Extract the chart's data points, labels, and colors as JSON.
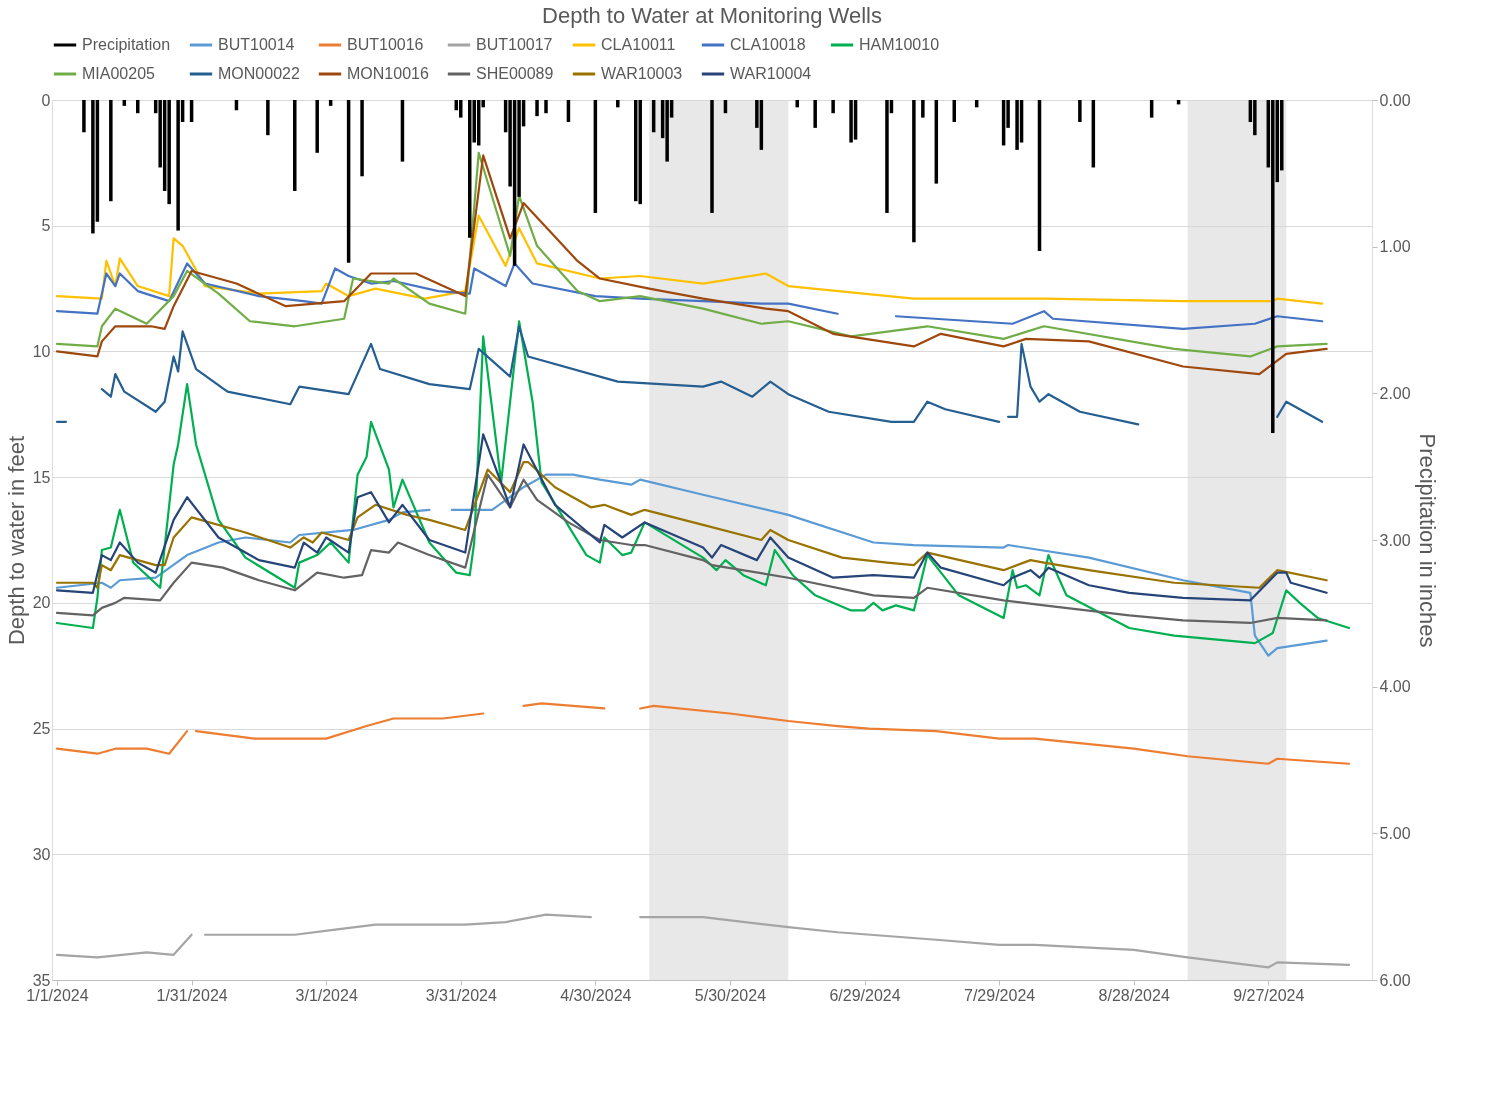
{
  "chart_data": {
    "type": "line",
    "title": "Depth to Water at Monitoring Wells",
    "ylabel": "Depth to water in feet",
    "y2label": "Precipitation in inches",
    "xlim": [
      "2024-01-01",
      "2024-10-19"
    ],
    "xticks": [
      {
        "value": "2024-01-01",
        "label": "1/1/2024"
      },
      {
        "value": "2024-01-31",
        "label": "1/31/2024"
      },
      {
        "value": "2024-03-01",
        "label": "3/1/2024"
      },
      {
        "value": "2024-03-31",
        "label": "3/31/2024"
      },
      {
        "value": "2024-04-30",
        "label": "4/30/2024"
      },
      {
        "value": "2024-05-30",
        "label": "5/30/2024"
      },
      {
        "value": "2024-06-29",
        "label": "6/29/2024"
      },
      {
        "value": "2024-07-29",
        "label": "7/29/2024"
      },
      {
        "value": "2024-08-28",
        "label": "8/28/2024"
      },
      {
        "value": "2024-09-27",
        "label": "9/27/2024"
      }
    ],
    "ylim": [
      35,
      0
    ],
    "yticks": [
      0,
      5,
      10,
      15,
      20,
      25,
      30,
      35
    ],
    "y2lim": [
      6,
      0
    ],
    "y2ticks": [
      {
        "value": 0,
        "label": "0.00"
      },
      {
        "value": 1,
        "label": "1.00"
      },
      {
        "value": 2,
        "label": "2.00"
      },
      {
        "value": 3,
        "label": "3.00"
      },
      {
        "value": 4,
        "label": "4.00"
      },
      {
        "value": 5,
        "label": "5.00"
      },
      {
        "value": 6,
        "label": "6.00"
      }
    ],
    "grid": "y",
    "legend": "top",
    "bands": [
      {
        "axis": "x",
        "from": "2024-05-12",
        "to": "2024-06-12",
        "color": "#d9d9d9"
      },
      {
        "axis": "x",
        "from": "2024-09-09",
        "to": "2024-10-01",
        "color": "#d9d9d9"
      }
    ],
    "series": [
      {
        "name": "Precipitation",
        "type": "bar",
        "axis": "y2",
        "color": "#000000",
        "x": [
          "2024-01-07",
          "2024-01-09",
          "2024-01-10",
          "2024-01-13",
          "2024-01-16",
          "2024-01-19",
          "2024-01-23",
          "2024-01-24",
          "2024-01-25",
          "2024-01-26",
          "2024-01-28",
          "2024-01-29",
          "2024-01-31",
          "2024-02-10",
          "2024-02-17",
          "2024-02-23",
          "2024-02-28",
          "2024-03-02",
          "2024-03-06",
          "2024-03-09",
          "2024-03-18",
          "2024-03-30",
          "2024-03-31",
          "2024-04-02",
          "2024-04-03",
          "2024-04-04",
          "2024-04-05",
          "2024-04-10",
          "2024-04-11",
          "2024-04-12",
          "2024-04-13",
          "2024-04-14",
          "2024-04-17",
          "2024-04-19",
          "2024-04-24",
          "2024-04-30",
          "2024-05-05",
          "2024-05-09",
          "2024-05-10",
          "2024-05-13",
          "2024-05-15",
          "2024-05-16",
          "2024-05-17",
          "2024-05-26",
          "2024-05-29",
          "2024-06-05",
          "2024-06-06",
          "2024-06-14",
          "2024-06-18",
          "2024-06-22",
          "2024-06-26",
          "2024-06-27",
          "2024-07-04",
          "2024-07-05",
          "2024-07-10",
          "2024-07-12",
          "2024-07-15",
          "2024-07-19",
          "2024-07-24",
          "2024-07-30",
          "2024-07-31",
          "2024-08-02",
          "2024-08-03",
          "2024-08-07",
          "2024-08-16",
          "2024-08-19",
          "2024-09-01",
          "2024-09-07",
          "2024-09-23",
          "2024-09-24",
          "2024-09-27",
          "2024-09-28",
          "2024-09-29",
          "2024-09-30"
        ],
        "values": [
          0.22,
          0.91,
          0.83,
          0.69,
          0.04,
          0.09,
          0.09,
          0.46,
          0.62,
          0.71,
          0.89,
          0.15,
          0.15,
          0.07,
          0.24,
          0.62,
          0.36,
          0.04,
          1.11,
          0.52,
          0.42,
          0.07,
          0.12,
          0.94,
          0.29,
          0.31,
          0.05,
          0.22,
          0.59,
          1.13,
          0.66,
          0.18,
          0.11,
          0.09,
          0.15,
          0.77,
          0.05,
          0.69,
          0.71,
          0.22,
          0.26,
          0.42,
          0.12,
          0.77,
          0.09,
          0.19,
          0.34,
          0.05,
          0.19,
          0.09,
          0.29,
          0.27,
          0.77,
          0.09,
          0.97,
          0.12,
          0.57,
          0.15,
          0.05,
          0.31,
          0.19,
          0.34,
          0.29,
          1.03,
          0.15,
          0.46,
          0.12,
          0.03,
          0.15,
          0.24,
          0.46,
          2.27,
          0.56,
          0.48
        ]
      },
      {
        "name": "BUT10014",
        "color": "#5b9bd5",
        "x": [
          "2024-01-01",
          "2024-01-11",
          "2024-01-13",
          "2024-01-15",
          "2024-01-23",
          "2024-01-30",
          "2024-02-06",
          "2024-02-12",
          "2024-02-22",
          "2024-02-24",
          "2024-03-07",
          "2024-03-15",
          "2024-03-18",
          "2024-03-24",
          "2024-03-26",
          "2024-03-29",
          "2024-04-07",
          "2024-04-14",
          "2024-04-19",
          "2024-04-25",
          "2024-05-01",
          "2024-05-08",
          "2024-05-10",
          "2024-05-24",
          "2024-06-12",
          "2024-07-01",
          "2024-07-10",
          "2024-07-30",
          "2024-07-31",
          "2024-08-18",
          "2024-09-08",
          "2024-09-23",
          "2024-09-24",
          "2024-09-27",
          "2024-09-29",
          "2024-10-10"
        ],
        "values": [
          19.4,
          19.2,
          19.4,
          19.1,
          19.0,
          18.1,
          17.6,
          17.4,
          17.6,
          17.3,
          17.1,
          16.7,
          16.4,
          16.3,
          null,
          16.3,
          16.3,
          15.4,
          14.9,
          14.9,
          15.1,
          15.3,
          15.1,
          15.7,
          16.5,
          17.6,
          17.7,
          17.8,
          17.7,
          18.2,
          19.1,
          19.6,
          21.3,
          22.1,
          21.8,
          21.5
        ]
      },
      {
        "name": "BUT10016",
        "color": "#ed7d31",
        "x": [
          "2024-01-01",
          "2024-01-10",
          "2024-01-14",
          "2024-01-21",
          "2024-01-26",
          "2024-01-30",
          "2024-01-31",
          "2024-02-01",
          "2024-02-14",
          "2024-02-21",
          "2024-03-01",
          "2024-03-10",
          "2024-03-16",
          "2024-03-27",
          "2024-04-05",
          "2024-04-10",
          "2024-04-14",
          "2024-04-18",
          "2024-05-02",
          "2024-05-06",
          "2024-05-10",
          "2024-05-13",
          "2024-05-30",
          "2024-06-12",
          "2024-06-23",
          "2024-06-30",
          "2024-07-15",
          "2024-07-29",
          "2024-08-06",
          "2024-08-28",
          "2024-09-09",
          "2024-09-27",
          "2024-09-29",
          "2024-10-15"
        ],
        "values": [
          25.8,
          26.0,
          25.8,
          25.8,
          26.0,
          25.1,
          null,
          25.1,
          25.4,
          25.4,
          25.4,
          24.9,
          24.6,
          24.6,
          24.4,
          null,
          24.1,
          24.0,
          24.2,
          null,
          24.2,
          24.1,
          24.4,
          24.7,
          24.9,
          25.0,
          25.1,
          25.4,
          25.4,
          25.8,
          26.1,
          26.4,
          26.2,
          26.4
        ]
      },
      {
        "name": "BUT10017",
        "color": "#a5a5a5",
        "x": [
          "2024-01-01",
          "2024-01-10",
          "2024-01-21",
          "2024-01-27",
          "2024-01-31",
          "2024-02-01",
          "2024-02-03",
          "2024-02-12",
          "2024-02-23",
          "2024-03-03",
          "2024-03-12",
          "2024-04-01",
          "2024-04-10",
          "2024-04-19",
          "2024-04-29",
          "2024-05-04",
          "2024-05-10",
          "2024-05-24",
          "2024-06-12",
          "2024-06-23",
          "2024-07-15",
          "2024-07-29",
          "2024-08-06",
          "2024-08-28",
          "2024-09-09",
          "2024-09-27",
          "2024-09-29",
          "2024-10-15"
        ],
        "values": [
          34.0,
          34.1,
          33.9,
          34.0,
          33.2,
          null,
          33.2,
          33.2,
          33.2,
          33.0,
          32.8,
          32.8,
          32.7,
          32.4,
          32.5,
          null,
          32.5,
          32.5,
          32.9,
          33.1,
          33.4,
          33.6,
          33.6,
          33.8,
          34.1,
          34.5,
          34.3,
          34.4
        ]
      },
      {
        "name": "CLA10011",
        "color": "#ffc000",
        "x": [
          "2024-01-01",
          "2024-01-11",
          "2024-01-12",
          "2024-01-14",
          "2024-01-15",
          "2024-01-19",
          "2024-01-26",
          "2024-01-27",
          "2024-01-29",
          "2024-02-03",
          "2024-02-15",
          "2024-02-29",
          "2024-03-01",
          "2024-03-06",
          "2024-03-12",
          "2024-03-23",
          "2024-04-01",
          "2024-04-04",
          "2024-04-10",
          "2024-04-13",
          "2024-04-17",
          "2024-05-01",
          "2024-05-10",
          "2024-05-24",
          "2024-06-07",
          "2024-06-12",
          "2024-07-10",
          "2024-08-08",
          "2024-09-08",
          "2024-09-28",
          "2024-09-29",
          "2024-10-09"
        ],
        "values": [
          7.8,
          7.9,
          6.4,
          7.4,
          6.3,
          7.4,
          7.8,
          5.5,
          5.8,
          7.4,
          7.7,
          7.6,
          7.3,
          7.8,
          7.5,
          7.9,
          7.6,
          4.6,
          6.6,
          5.1,
          6.5,
          7.1,
          7.0,
          7.3,
          6.9,
          7.4,
          7.9,
          7.9,
          8.0,
          8.0,
          7.9,
          8.1
        ]
      },
      {
        "name": "CLA10018",
        "color": "#4472c4",
        "x": [
          "2024-01-01",
          "2024-01-10",
          "2024-01-12",
          "2024-01-14",
          "2024-01-15",
          "2024-01-19",
          "2024-01-26",
          "2024-01-30",
          "2024-02-03",
          "2024-02-15",
          "2024-02-25",
          "2024-02-29",
          "2024-03-03",
          "2024-03-06",
          "2024-03-11",
          "2024-03-16",
          "2024-03-26",
          "2024-04-02",
          "2024-04-03",
          "2024-04-10",
          "2024-04-12",
          "2024-04-16",
          "2024-04-30",
          "2024-05-10",
          "2024-05-24",
          "2024-06-06",
          "2024-06-12",
          "2024-06-23",
          "2024-06-29",
          "2024-07-06",
          "2024-08-01",
          "2024-08-08",
          "2024-08-10",
          "2024-09-08",
          "2024-09-24",
          "2024-09-29",
          "2024-10-09"
        ],
        "values": [
          8.4,
          8.5,
          6.9,
          7.4,
          6.9,
          7.6,
          8.0,
          6.5,
          7.3,
          7.8,
          8.0,
          8.1,
          6.7,
          7.0,
          7.3,
          7.2,
          7.6,
          7.7,
          6.7,
          7.4,
          6.5,
          7.3,
          7.8,
          7.9,
          8.0,
          8.1,
          8.1,
          8.5,
          null,
          8.6,
          8.9,
          8.4,
          8.7,
          9.1,
          8.9,
          8.6,
          8.8
        ]
      },
      {
        "name": "HAM10010",
        "color": "#00b050",
        "x": [
          "2024-01-01",
          "2024-01-09",
          "2024-01-10",
          "2024-01-11",
          "2024-01-13",
          "2024-01-15",
          "2024-01-18",
          "2024-01-24",
          "2024-01-27",
          "2024-01-28",
          "2024-01-30",
          "2024-02-01",
          "2024-02-06",
          "2024-02-12",
          "2024-02-23",
          "2024-02-24",
          "2024-02-28",
          "2024-03-02",
          "2024-03-06",
          "2024-03-08",
          "2024-03-10",
          "2024-03-11",
          "2024-03-15",
          "2024-03-16",
          "2024-03-18",
          "2024-03-24",
          "2024-03-30",
          "2024-04-02",
          "2024-04-03",
          "2024-04-05",
          "2024-04-09",
          "2024-04-13",
          "2024-04-16",
          "2024-04-18",
          "2024-04-28",
          "2024-05-01",
          "2024-05-02",
          "2024-05-06",
          "2024-05-08",
          "2024-05-11",
          "2024-05-24",
          "2024-05-27",
          "2024-05-29",
          "2024-06-02",
          "2024-06-07",
          "2024-06-09",
          "2024-06-13",
          "2024-06-18",
          "2024-06-26",
          "2024-06-29",
          "2024-07-01",
          "2024-07-03",
          "2024-07-06",
          "2024-07-10",
          "2024-07-13",
          "2024-07-20",
          "2024-07-30",
          "2024-08-01",
          "2024-08-02",
          "2024-08-04",
          "2024-08-07",
          "2024-08-09",
          "2024-08-13",
          "2024-08-27",
          "2024-09-06",
          "2024-09-24",
          "2024-09-28",
          "2024-10-01",
          "2024-10-04",
          "2024-10-08",
          "2024-10-15"
        ],
        "values": [
          20.8,
          21.0,
          19.8,
          17.9,
          17.8,
          16.3,
          18.4,
          19.4,
          14.5,
          13.7,
          11.3,
          13.7,
          16.7,
          18.2,
          19.4,
          18.4,
          18.1,
          17.6,
          18.4,
          14.9,
          14.2,
          12.8,
          14.7,
          16.2,
          15.1,
          17.6,
          18.8,
          18.9,
          17.6,
          9.4,
          15.2,
          8.8,
          12.0,
          15.2,
          18.1,
          18.4,
          17.4,
          18.1,
          18.0,
          16.8,
          18.2,
          18.7,
          18.3,
          18.9,
          19.3,
          17.9,
          18.9,
          19.7,
          20.3,
          20.3,
          20.0,
          20.3,
          20.1,
          20.3,
          18.1,
          19.7,
          20.6,
          18.7,
          19.4,
          19.3,
          19.7,
          18.1,
          19.7,
          21.0,
          21.3,
          21.6,
          21.2,
          19.5,
          20.0,
          20.6,
          21.0
        ]
      },
      {
        "name": "MIA00205",
        "color": "#70ad47",
        "x": [
          "2024-01-01",
          "2024-01-10",
          "2024-01-11",
          "2024-01-14",
          "2024-01-21",
          "2024-01-27",
          "2024-01-30",
          "2024-02-06",
          "2024-02-13",
          "2024-02-23",
          "2024-03-05",
          "2024-03-07",
          "2024-03-15",
          "2024-03-16",
          "2024-03-24",
          "2024-04-01",
          "2024-04-04",
          "2024-04-11",
          "2024-04-13",
          "2024-04-17",
          "2024-04-26",
          "2024-05-01",
          "2024-05-10",
          "2024-05-24",
          "2024-06-06",
          "2024-06-12",
          "2024-06-26",
          "2024-07-13",
          "2024-07-30",
          "2024-08-08",
          "2024-09-06",
          "2024-09-23",
          "2024-09-29",
          "2024-10-10"
        ],
        "values": [
          9.7,
          9.8,
          9.0,
          8.3,
          8.9,
          7.8,
          6.8,
          7.7,
          8.8,
          9.0,
          8.7,
          7.1,
          7.3,
          7.1,
          8.1,
          8.5,
          2.1,
          6.2,
          3.8,
          5.8,
          7.6,
          8.0,
          7.8,
          8.3,
          8.9,
          8.8,
          9.4,
          9.0,
          9.5,
          9.0,
          9.9,
          10.2,
          9.8,
          9.7
        ]
      },
      {
        "name": "MON00022",
        "color": "#255e91",
        "x": [
          "2024-01-01",
          "2024-01-03",
          "2024-01-06",
          "2024-01-11",
          "2024-01-13",
          "2024-01-14",
          "2024-01-16",
          "2024-01-23",
          "2024-01-25",
          "2024-01-27",
          "2024-01-28",
          "2024-01-29",
          "2024-02-01",
          "2024-02-08",
          "2024-02-22",
          "2024-02-24",
          "2024-03-06",
          "2024-03-11",
          "2024-03-13",
          "2024-03-24",
          "2024-04-02",
          "2024-04-04",
          "2024-04-11",
          "2024-04-13",
          "2024-04-15",
          "2024-05-05",
          "2024-05-24",
          "2024-05-28",
          "2024-06-04",
          "2024-06-08",
          "2024-06-12",
          "2024-06-21",
          "2024-07-05",
          "2024-07-10",
          "2024-07-13",
          "2024-07-17",
          "2024-07-29",
          "2024-07-30",
          "2024-07-31",
          "2024-08-02",
          "2024-08-03",
          "2024-08-05",
          "2024-08-07",
          "2024-08-09",
          "2024-08-16",
          "2024-08-29",
          "2024-09-13",
          "2024-09-29",
          "2024-10-01",
          "2024-10-09"
        ],
        "values": [
          12.8,
          12.8,
          null,
          11.5,
          11.8,
          10.9,
          11.6,
          12.4,
          12.0,
          10.2,
          10.8,
          9.2,
          10.7,
          11.6,
          12.1,
          11.4,
          11.7,
          9.7,
          10.7,
          11.3,
          11.5,
          9.9,
          11.0,
          9.0,
          10.2,
          11.2,
          11.4,
          11.2,
          11.8,
          11.2,
          11.7,
          12.4,
          12.8,
          12.8,
          12.0,
          12.3,
          12.8,
          null,
          12.6,
          12.6,
          9.7,
          11.4,
          12.0,
          11.7,
          12.4,
          12.9,
          null,
          12.6,
          12.0,
          12.8
        ]
      },
      {
        "name": "MON10016",
        "color": "#9e480e",
        "x": [
          "2024-01-01",
          "2024-01-10",
          "2024-01-11",
          "2024-01-14",
          "2024-01-22",
          "2024-01-25",
          "2024-01-27",
          "2024-01-31",
          "2024-02-10",
          "2024-02-21",
          "2024-03-05",
          "2024-03-11",
          "2024-03-21",
          "2024-04-01",
          "2024-04-05",
          "2024-04-11",
          "2024-04-14",
          "2024-04-26",
          "2024-05-01",
          "2024-05-12",
          "2024-05-24",
          "2024-06-07",
          "2024-06-12",
          "2024-06-22",
          "2024-07-10",
          "2024-07-16",
          "2024-07-30",
          "2024-08-04",
          "2024-08-18",
          "2024-09-08",
          "2024-09-25",
          "2024-10-01",
          "2024-10-10"
        ],
        "values": [
          10.0,
          10.2,
          9.6,
          9.0,
          9.0,
          9.1,
          8.2,
          6.8,
          7.3,
          8.2,
          8.0,
          6.9,
          6.9,
          7.8,
          2.2,
          5.5,
          4.1,
          6.4,
          7.1,
          7.5,
          7.9,
          8.3,
          8.4,
          9.3,
          9.8,
          9.3,
          9.8,
          9.5,
          9.6,
          10.6,
          10.9,
          10.1,
          9.9
        ]
      },
      {
        "name": "SHE00089",
        "color": "#636363",
        "x": [
          "2024-01-01",
          "2024-01-09",
          "2024-01-11",
          "2024-01-14",
          "2024-01-16",
          "2024-01-24",
          "2024-01-27",
          "2024-01-31",
          "2024-02-07",
          "2024-02-15",
          "2024-02-23",
          "2024-02-28",
          "2024-03-05",
          "2024-03-09",
          "2024-03-11",
          "2024-03-15",
          "2024-03-17",
          "2024-03-24",
          "2024-04-01",
          "2024-04-06",
          "2024-04-11",
          "2024-04-14",
          "2024-04-17",
          "2024-04-24",
          "2024-05-01",
          "2024-05-08",
          "2024-05-11",
          "2024-05-24",
          "2024-05-26",
          "2024-06-12",
          "2024-07-01",
          "2024-07-10",
          "2024-07-13",
          "2024-07-30",
          "2024-08-08",
          "2024-08-27",
          "2024-09-08",
          "2024-09-23",
          "2024-09-29",
          "2024-10-10"
        ],
        "values": [
          20.4,
          20.5,
          20.2,
          20.0,
          19.8,
          19.9,
          19.2,
          18.4,
          18.6,
          19.1,
          19.5,
          18.8,
          19.0,
          18.9,
          17.9,
          18.0,
          17.6,
          18.1,
          18.6,
          14.9,
          16.2,
          15.1,
          15.9,
          16.8,
          17.5,
          17.7,
          17.7,
          18.3,
          18.5,
          19.0,
          19.7,
          19.8,
          19.4,
          19.9,
          20.1,
          20.5,
          20.7,
          20.8,
          20.6,
          20.7
        ]
      },
      {
        "name": "WAR10003",
        "color": "#997300",
        "x": [
          "2024-01-01",
          "2024-01-09",
          "2024-01-10",
          "2024-01-11",
          "2024-01-13",
          "2024-01-15",
          "2024-01-23",
          "2024-01-25",
          "2024-01-27",
          "2024-01-31",
          "2024-02-12",
          "2024-02-22",
          "2024-02-25",
          "2024-02-27",
          "2024-02-29",
          "2024-03-06",
          "2024-03-08",
          "2024-03-12",
          "2024-03-19",
          "2024-03-24",
          "2024-04-01",
          "2024-04-06",
          "2024-04-11",
          "2024-04-14",
          "2024-04-15",
          "2024-04-21",
          "2024-04-29",
          "2024-05-02",
          "2024-05-08",
          "2024-05-11",
          "2024-05-24",
          "2024-06-06",
          "2024-06-08",
          "2024-06-12",
          "2024-06-24",
          "2024-07-04",
          "2024-07-10",
          "2024-07-13",
          "2024-07-30",
          "2024-08-05",
          "2024-08-08",
          "2024-08-18",
          "2024-09-06",
          "2024-09-25",
          "2024-09-29",
          "2024-10-10"
        ],
        "values": [
          19.2,
          19.2,
          19.4,
          18.5,
          18.7,
          18.1,
          18.5,
          18.5,
          17.4,
          16.6,
          17.2,
          17.8,
          17.4,
          17.6,
          17.2,
          17.5,
          16.6,
          16.1,
          16.5,
          16.7,
          17.1,
          14.7,
          15.6,
          14.4,
          14.4,
          15.4,
          16.2,
          16.1,
          16.5,
          16.3,
          16.9,
          17.5,
          17.1,
          17.5,
          18.2,
          18.4,
          18.5,
          18.0,
          18.7,
          18.3,
          18.4,
          18.7,
          19.2,
          19.4,
          18.7,
          19.1
        ]
      },
      {
        "name": "WAR10004",
        "color": "#264478",
        "x": [
          "2024-01-01",
          "2024-01-09",
          "2024-01-11",
          "2024-01-13",
          "2024-01-15",
          "2024-01-19",
          "2024-01-23",
          "2024-01-27",
          "2024-01-30",
          "2024-02-06",
          "2024-02-12",
          "2024-02-15",
          "2024-02-23",
          "2024-02-25",
          "2024-02-28",
          "2024-03-01",
          "2024-03-06",
          "2024-03-08",
          "2024-03-11",
          "2024-03-15",
          "2024-03-18",
          "2024-03-24",
          "2024-04-01",
          "2024-04-05",
          "2024-04-11",
          "2024-04-14",
          "2024-04-21",
          "2024-05-01",
          "2024-05-02",
          "2024-05-06",
          "2024-05-11",
          "2024-05-24",
          "2024-05-26",
          "2024-05-28",
          "2024-06-05",
          "2024-06-08",
          "2024-06-12",
          "2024-06-22",
          "2024-07-01",
          "2024-07-10",
          "2024-07-13",
          "2024-07-16",
          "2024-07-30",
          "2024-08-01",
          "2024-08-05",
          "2024-08-07",
          "2024-08-09",
          "2024-08-18",
          "2024-08-27",
          "2024-09-08",
          "2024-09-23",
          "2024-09-29",
          "2024-10-01",
          "2024-10-02",
          "2024-10-10"
        ],
        "values": [
          19.5,
          19.6,
          18.1,
          18.3,
          17.6,
          18.4,
          18.8,
          16.7,
          15.8,
          17.4,
          18.0,
          18.3,
          18.6,
          17.6,
          18.0,
          17.4,
          18.0,
          15.8,
          15.6,
          16.8,
          16.1,
          17.5,
          18.0,
          13.3,
          16.2,
          13.7,
          16.1,
          17.6,
          16.9,
          17.4,
          16.8,
          17.8,
          18.2,
          17.7,
          18.3,
          17.4,
          18.2,
          19.0,
          18.9,
          19.0,
          18.0,
          18.6,
          19.3,
          19.0,
          18.7,
          19.0,
          18.6,
          19.3,
          19.6,
          19.8,
          19.9,
          18.8,
          18.8,
          19.2,
          19.6
        ]
      }
    ]
  }
}
